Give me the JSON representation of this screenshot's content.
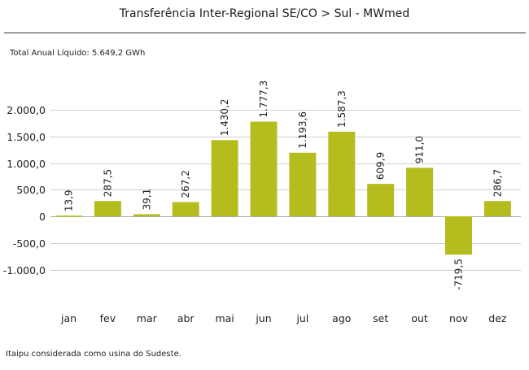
{
  "header": {
    "title": "Transferência Inter-Regional SE/CO > Sul - MWmed",
    "subtitle": "Total Anual Líquido: 5.649,2 GWh",
    "footnote": "Itaipu considerada como usina do Sudeste."
  },
  "chart_data": {
    "type": "bar",
    "title": "Transferência Inter-Regional SE/CO > Sul - MWmed",
    "categories": [
      "jan",
      "fev",
      "mar",
      "abr",
      "mai",
      "jun",
      "jul",
      "ago",
      "set",
      "out",
      "nov",
      "dez"
    ],
    "values": [
      13.9,
      287.5,
      39.1,
      267.2,
      1430.2,
      1777.3,
      1193.6,
      1587.3,
      609.9,
      911.0,
      -719.5,
      286.7
    ],
    "data_labels": [
      "13,9",
      "287,5",
      "39,1",
      "267,2",
      "1.430,2",
      "1.777,3",
      "1.193,6",
      "1.587,3",
      "609,9",
      "911,0",
      "-719,5",
      "286,7"
    ],
    "y_ticks": [
      -1000,
      -500,
      0,
      500,
      1000,
      1500,
      2000
    ],
    "y_tick_labels": [
      "-1.000,0",
      "-500,0",
      "0",
      "500,0",
      "1.000,0",
      "1.500,0",
      "2.000,0"
    ],
    "ylim": [
      -1000,
      2000
    ],
    "grid": true,
    "bar_color": "#b5bd1e",
    "grid_color": "#cfcfcf"
  }
}
